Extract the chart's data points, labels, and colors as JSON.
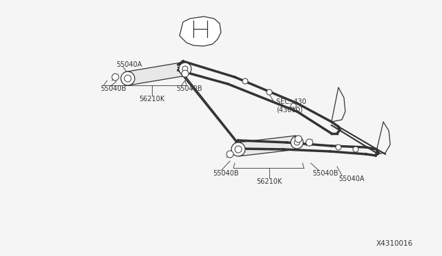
{
  "bg_color": "#f5f5f5",
  "line_color": "#333333",
  "title": "",
  "watermark": "X4310016",
  "labels": {
    "55040A_top": "55040A",
    "55040B_top_left": "55040B",
    "55040B_top_mid": "55040B",
    "56210K_top": "56210K",
    "sec430": "SEC. 430\n(43010)",
    "55040B_bot_left": "55040B",
    "55040B_bot_right": "55040B",
    "55040A_bot": "55040A",
    "56210K_bot": "56210K"
  },
  "label_fontsize": 7,
  "watermark_fontsize": 7.5
}
